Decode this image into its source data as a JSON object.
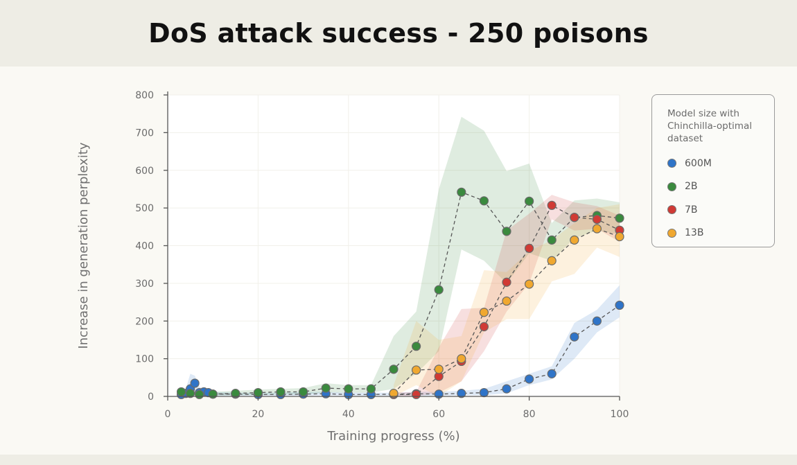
{
  "title": "DoS attack success - 250 poisons",
  "chart_data": {
    "type": "line",
    "xlabel": "Training progress (%)",
    "ylabel": "Increase in generation perplexity",
    "xlim": [
      0,
      100
    ],
    "ylim": [
      0,
      800
    ],
    "xticks": [
      0,
      20,
      40,
      60,
      80,
      100
    ],
    "yticks": [
      0,
      100,
      200,
      300,
      400,
      500,
      600,
      700,
      800
    ],
    "grid": true,
    "legend_title": "Model size with Chinchilla-optimal dataset",
    "legend_position": "right",
    "series": [
      {
        "name": "600M",
        "color": "#2f74c8",
        "x": [
          3,
          4,
          5,
          6,
          7,
          8,
          9,
          10,
          15,
          20,
          25,
          30,
          35,
          40,
          45,
          50,
          55,
          60,
          65,
          70,
          75,
          80,
          85,
          90,
          95,
          100
        ],
        "y": [
          5,
          8,
          20,
          35,
          10,
          12,
          10,
          6,
          6,
          5,
          5,
          6,
          7,
          5,
          5,
          6,
          7,
          6,
          8,
          10,
          20,
          46,
          60,
          158,
          200,
          242
        ],
        "lower": [
          0,
          0,
          5,
          10,
          2,
          3,
          3,
          2,
          2,
          2,
          2,
          2,
          3,
          2,
          2,
          2,
          2,
          2,
          3,
          3,
          8,
          30,
          45,
          100,
          170,
          210
        ],
        "upper": [
          10,
          20,
          60,
          55,
          25,
          20,
          18,
          12,
          10,
          10,
          10,
          12,
          12,
          10,
          10,
          10,
          12,
          12,
          15,
          20,
          40,
          60,
          80,
          195,
          230,
          295
        ]
      },
      {
        "name": "2B",
        "color": "#3a8a3e",
        "x": [
          3,
          5,
          7,
          10,
          15,
          20,
          25,
          30,
          35,
          40,
          45,
          50,
          55,
          60,
          65,
          70,
          75,
          80,
          85,
          90,
          95,
          100
        ],
        "y": [
          12,
          8,
          5,
          6,
          8,
          10,
          12,
          12,
          22,
          20,
          20,
          72,
          133,
          283,
          542,
          519,
          438,
          518,
          415,
          475,
          480,
          473
        ],
        "lower": [
          3,
          2,
          2,
          2,
          3,
          4,
          5,
          5,
          10,
          10,
          10,
          20,
          60,
          120,
          390,
          360,
          300,
          380,
          360,
          420,
          440,
          430
        ],
        "upper": [
          20,
          15,
          12,
          12,
          15,
          18,
          20,
          22,
          35,
          30,
          30,
          160,
          225,
          550,
          742,
          705,
          598,
          618,
          460,
          520,
          525,
          515
        ]
      },
      {
        "name": "7B",
        "color": "#d03a35",
        "x": [
          50,
          55,
          60,
          65,
          70,
          75,
          80,
          85,
          90,
          95,
          100
        ],
        "y": [
          5,
          5,
          53,
          93,
          185,
          303,
          393,
          507,
          475,
          470,
          441
        ],
        "lower": [
          0,
          0,
          10,
          40,
          120,
          225,
          300,
          470,
          440,
          445,
          410
        ],
        "upper": [
          10,
          12,
          130,
          232,
          235,
          440,
          485,
          535,
          515,
          505,
          480
        ]
      },
      {
        "name": "13B",
        "color": "#f0a830",
        "x": [
          50,
          55,
          60,
          65,
          70,
          75,
          80,
          85,
          90,
          95,
          100
        ],
        "y": [
          8,
          70,
          72,
          100,
          223,
          253,
          298,
          360,
          415,
          445,
          424
        ],
        "lower": [
          0,
          30,
          0,
          40,
          170,
          205,
          205,
          305,
          325,
          395,
          370
        ],
        "upper": [
          30,
          200,
          150,
          160,
          335,
          330,
          385,
          415,
          460,
          500,
          510
        ]
      }
    ]
  }
}
